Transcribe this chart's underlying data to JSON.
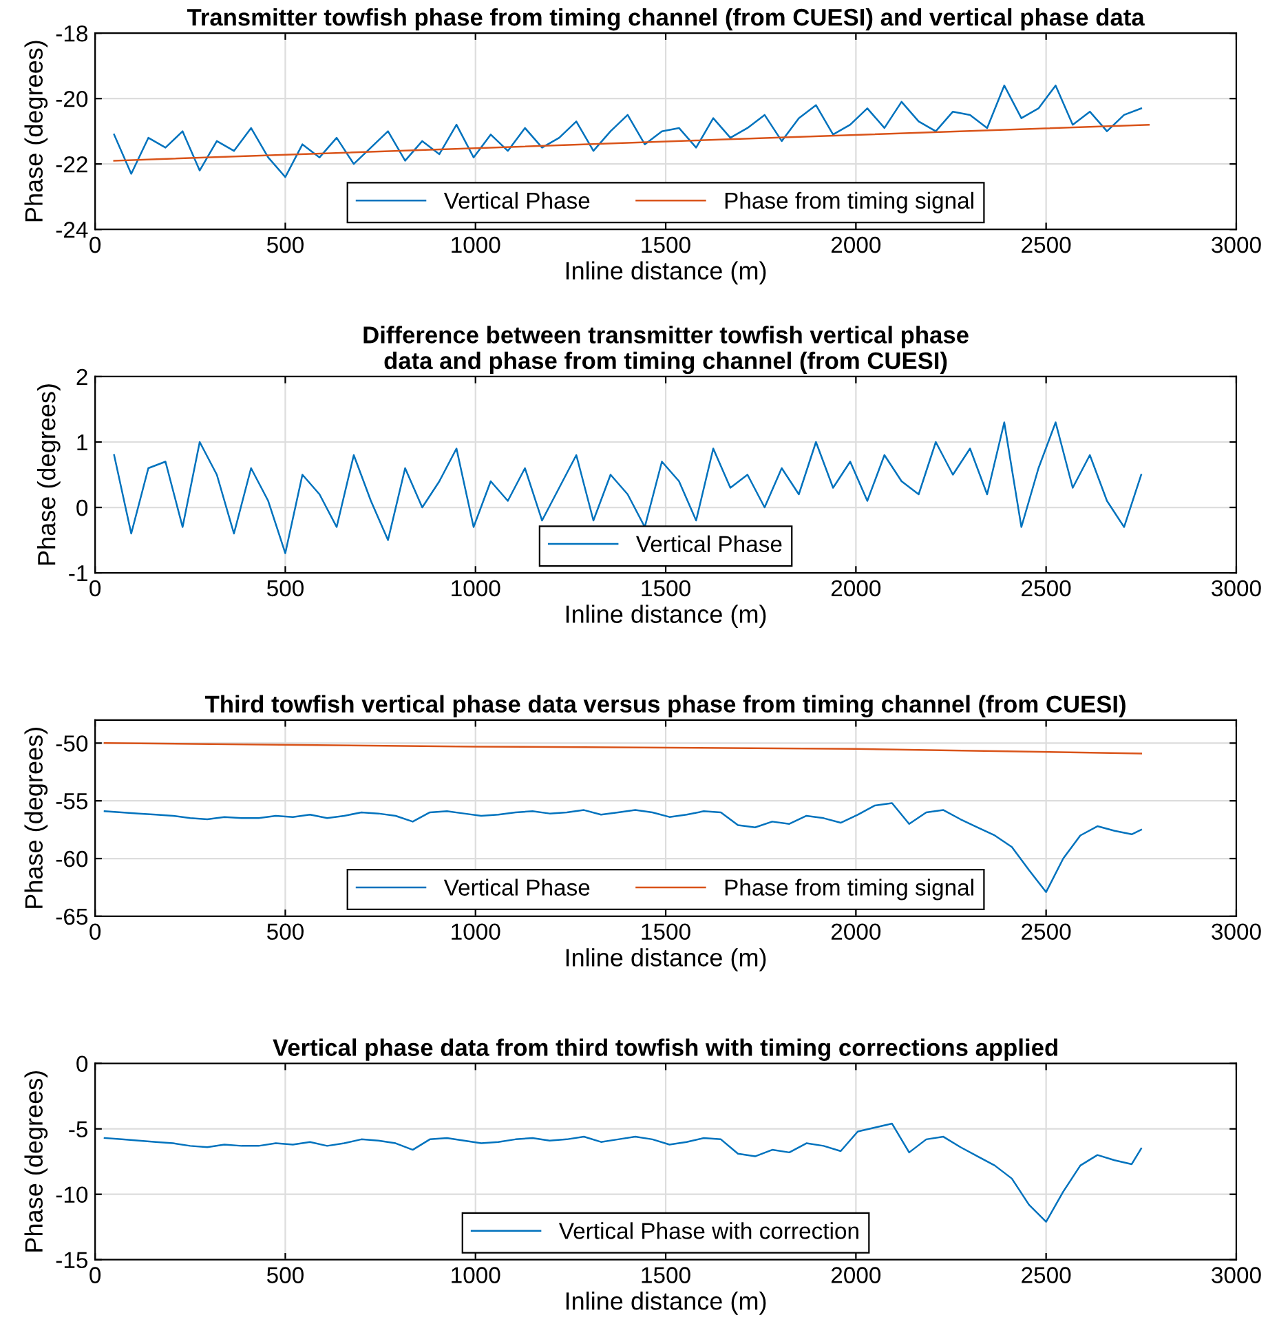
{
  "chart_data": [
    {
      "type": "line",
      "title": "Transmitter towfish phase from timing channel (from CUESI) and vertical phase data",
      "xlabel": "Inline distance (m)",
      "ylabel": "Phase (degrees)",
      "xlim": [
        0,
        3000
      ],
      "xticks": [
        0,
        500,
        1000,
        1500,
        2000,
        2500,
        3000
      ],
      "ylim": [
        -24,
        -18
      ],
      "yticks": [
        -24,
        -22,
        -20,
        -18
      ],
      "grid": true,
      "legend": "bottom",
      "series": [
        {
          "name": "Vertical Phase",
          "color": "#0072bd",
          "x": [
            50,
            95,
            140,
            185,
            230,
            275,
            320,
            365,
            410,
            455,
            500,
            545,
            590,
            635,
            680,
            725,
            770,
            815,
            860,
            905,
            950,
            995,
            1040,
            1085,
            1130,
            1175,
            1220,
            1265,
            1310,
            1355,
            1400,
            1445,
            1490,
            1535,
            1580,
            1625,
            1670,
            1715,
            1760,
            1805,
            1850,
            1895,
            1940,
            1985,
            2030,
            2075,
            2120,
            2165,
            2210,
            2255,
            2300,
            2345,
            2390,
            2435,
            2480,
            2525,
            2570,
            2615,
            2660,
            2705,
            2750
          ],
          "values": [
            -21.1,
            -22.3,
            -21.2,
            -21.5,
            -21.0,
            -22.2,
            -21.3,
            -21.6,
            -20.9,
            -21.8,
            -22.4,
            -21.4,
            -21.8,
            -21.2,
            -22.0,
            -21.5,
            -21.0,
            -21.9,
            -21.3,
            -21.7,
            -20.8,
            -21.8,
            -21.1,
            -21.6,
            -20.9,
            -21.5,
            -21.2,
            -20.7,
            -21.6,
            -21.0,
            -20.5,
            -21.4,
            -21.0,
            -20.9,
            -21.5,
            -20.6,
            -21.2,
            -20.9,
            -20.5,
            -21.3,
            -20.6,
            -20.2,
            -21.1,
            -20.8,
            -20.3,
            -20.9,
            -20.1,
            -20.7,
            -21.0,
            -20.4,
            -20.5,
            -20.9,
            -19.6,
            -20.6,
            -20.3,
            -19.6,
            -20.8,
            -20.4,
            -21.0,
            -20.5,
            -20.3
          ]
        },
        {
          "name": "Phase from timing signal",
          "color": "#d95319",
          "x": [
            50,
            2770
          ],
          "values": [
            -21.9,
            -20.8
          ]
        }
      ]
    },
    {
      "type": "line",
      "title": "Difference between transmitter towfish vertical phase\ndata and phase from timing channel (from CUESI)",
      "xlabel": "Inline distance (m)",
      "ylabel": "Phase (degrees)",
      "xlim": [
        0,
        3000
      ],
      "xticks": [
        0,
        500,
        1000,
        1500,
        2000,
        2500,
        3000
      ],
      "ylim": [
        -1,
        2
      ],
      "yticks": [
        -1,
        0,
        1,
        2
      ],
      "grid": true,
      "legend": "bottom",
      "series": [
        {
          "name": "Vertical Phase",
          "color": "#0072bd",
          "x": [
            50,
            95,
            140,
            185,
            230,
            275,
            320,
            365,
            410,
            455,
            500,
            545,
            590,
            635,
            680,
            725,
            770,
            815,
            860,
            905,
            950,
            995,
            1040,
            1085,
            1130,
            1175,
            1220,
            1265,
            1310,
            1355,
            1400,
            1445,
            1490,
            1535,
            1580,
            1625,
            1670,
            1715,
            1760,
            1805,
            1850,
            1895,
            1940,
            1985,
            2030,
            2075,
            2120,
            2165,
            2210,
            2255,
            2300,
            2345,
            2390,
            2435,
            2480,
            2525,
            2570,
            2615,
            2660,
            2705,
            2750
          ],
          "values": [
            0.8,
            -0.4,
            0.6,
            0.7,
            -0.3,
            1.0,
            0.5,
            -0.4,
            0.6,
            0.1,
            -0.7,
            0.5,
            0.2,
            -0.3,
            0.8,
            0.1,
            -0.5,
            0.6,
            0.0,
            0.4,
            0.9,
            -0.3,
            0.4,
            0.1,
            0.6,
            -0.2,
            0.3,
            0.8,
            -0.2,
            0.5,
            0.2,
            -0.3,
            0.7,
            0.4,
            -0.2,
            0.9,
            0.3,
            0.5,
            0.0,
            0.6,
            0.2,
            1.0,
            0.3,
            0.7,
            0.1,
            0.8,
            0.4,
            0.2,
            1.0,
            0.5,
            0.9,
            0.2,
            1.3,
            -0.3,
            0.6,
            1.3,
            0.3,
            0.8,
            0.1,
            -0.3,
            0.5
          ]
        }
      ]
    },
    {
      "type": "line",
      "title": "Third towfish vertical phase data versus phase from timing channel (from CUESI)",
      "xlabel": "Inline distance (m)",
      "ylabel": "Phase (degrees)",
      "xlim": [
        0,
        3000
      ],
      "xticks": [
        0,
        500,
        1000,
        1500,
        2000,
        2500,
        3000
      ],
      "ylim": [
        -65,
        -48
      ],
      "yticks": [
        -65,
        -60,
        -55,
        -50
      ],
      "grid": true,
      "legend": "bottom",
      "series": [
        {
          "name": "Vertical Phase",
          "color": "#0072bd",
          "x": [
            25,
            70,
            115,
            160,
            205,
            250,
            295,
            340,
            385,
            430,
            475,
            520,
            565,
            610,
            655,
            700,
            745,
            790,
            835,
            880,
            925,
            970,
            1015,
            1060,
            1105,
            1150,
            1195,
            1240,
            1285,
            1330,
            1375,
            1420,
            1465,
            1510,
            1555,
            1600,
            1645,
            1690,
            1735,
            1780,
            1825,
            1870,
            1915,
            1960,
            2005,
            2050,
            2095,
            2140,
            2185,
            2230,
            2275,
            2320,
            2365,
            2410,
            2455,
            2500,
            2545,
            2590,
            2635,
            2680,
            2725,
            2750
          ],
          "values": [
            -55.9,
            -56.0,
            -56.1,
            -56.2,
            -56.3,
            -56.5,
            -56.6,
            -56.4,
            -56.5,
            -56.5,
            -56.3,
            -56.4,
            -56.2,
            -56.5,
            -56.3,
            -56.0,
            -56.1,
            -56.3,
            -56.8,
            -56.0,
            -55.9,
            -56.1,
            -56.3,
            -56.2,
            -56.0,
            -55.9,
            -56.1,
            -56.0,
            -55.8,
            -56.2,
            -56.0,
            -55.8,
            -56.0,
            -56.4,
            -56.2,
            -55.9,
            -56.0,
            -57.1,
            -57.3,
            -56.8,
            -57.0,
            -56.3,
            -56.5,
            -56.9,
            -56.2,
            -55.4,
            -55.2,
            -57.0,
            -56.0,
            -55.8,
            -56.6,
            -57.3,
            -58.0,
            -59.0,
            -61.0,
            -62.9,
            -60.0,
            -58.0,
            -57.2,
            -57.6,
            -57.9,
            -57.5
          ]
        },
        {
          "name": "Phase from timing signal",
          "color": "#d95319",
          "x": [
            25,
            1000,
            2000,
            2750
          ],
          "values": [
            -50.0,
            -50.3,
            -50.5,
            -50.9
          ]
        }
      ]
    },
    {
      "type": "line",
      "title": "Vertical phase data from third towfish with timing corrections applied",
      "xlabel": "Inline distance (m)",
      "ylabel": "Phase (degrees)",
      "xlim": [
        0,
        3000
      ],
      "xticks": [
        0,
        500,
        1000,
        1500,
        2000,
        2500,
        3000
      ],
      "ylim": [
        -15,
        0
      ],
      "yticks": [
        -15,
        -10,
        -5,
        0
      ],
      "grid": true,
      "legend": "bottom",
      "series": [
        {
          "name": "Vertical Phase with correction",
          "color": "#0072bd",
          "x": [
            25,
            70,
            115,
            160,
            205,
            250,
            295,
            340,
            385,
            430,
            475,
            520,
            565,
            610,
            655,
            700,
            745,
            790,
            835,
            880,
            925,
            970,
            1015,
            1060,
            1105,
            1150,
            1195,
            1240,
            1285,
            1330,
            1375,
            1420,
            1465,
            1510,
            1555,
            1600,
            1645,
            1690,
            1735,
            1780,
            1825,
            1870,
            1915,
            1960,
            2005,
            2050,
            2095,
            2140,
            2185,
            2230,
            2275,
            2320,
            2365,
            2410,
            2455,
            2500,
            2545,
            2590,
            2635,
            2680,
            2725,
            2750
          ],
          "values": [
            -5.7,
            -5.8,
            -5.9,
            -6.0,
            -6.1,
            -6.3,
            -6.4,
            -6.2,
            -6.3,
            -6.3,
            -6.1,
            -6.2,
            -6.0,
            -6.3,
            -6.1,
            -5.8,
            -5.9,
            -6.1,
            -6.6,
            -5.8,
            -5.7,
            -5.9,
            -6.1,
            -6.0,
            -5.8,
            -5.7,
            -5.9,
            -5.8,
            -5.6,
            -6.0,
            -5.8,
            -5.6,
            -5.8,
            -6.2,
            -6.0,
            -5.7,
            -5.8,
            -6.9,
            -7.1,
            -6.6,
            -6.8,
            -6.1,
            -6.3,
            -6.7,
            -5.2,
            -4.9,
            -4.6,
            -6.8,
            -5.8,
            -5.6,
            -6.4,
            -7.1,
            -7.8,
            -8.8,
            -10.8,
            -12.1,
            -9.8,
            -7.8,
            -7.0,
            -7.4,
            -7.7,
            -6.5
          ]
        }
      ]
    }
  ]
}
